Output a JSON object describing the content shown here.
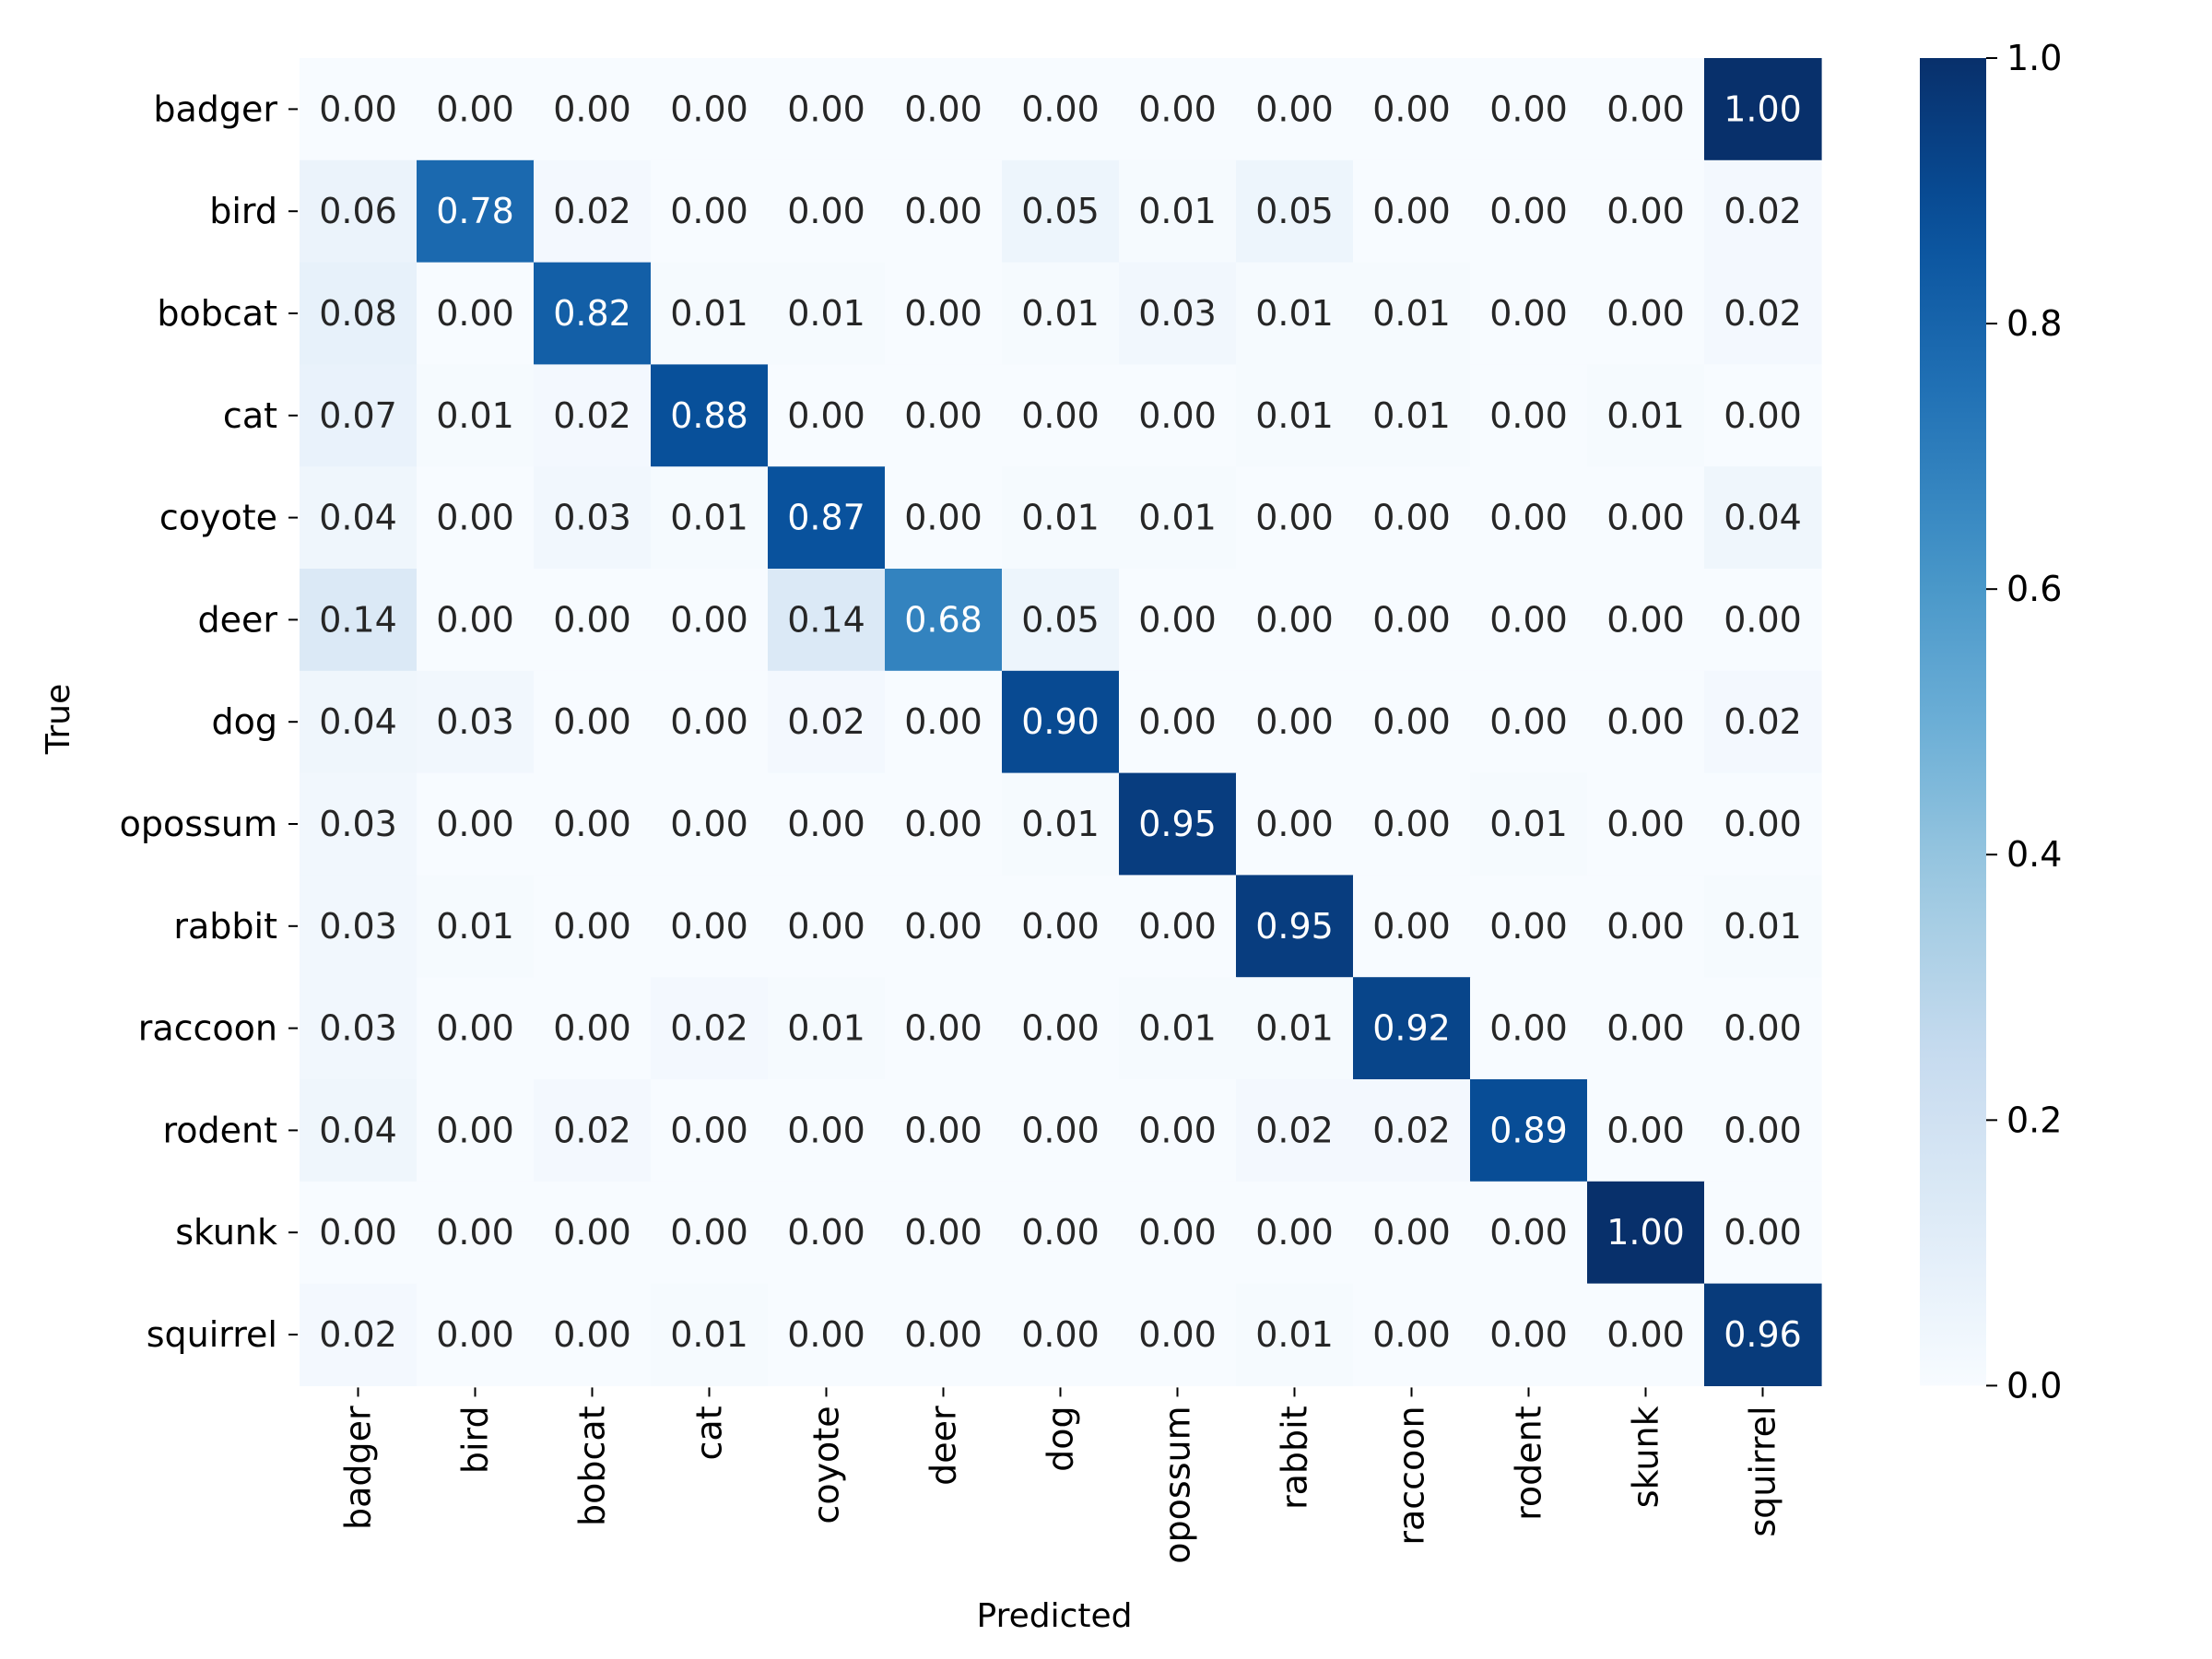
{
  "chart_data": {
    "type": "heatmap",
    "title": "",
    "xlabel": "Predicted",
    "ylabel": "True",
    "categories": [
      "badger",
      "bird",
      "bobcat",
      "cat",
      "coyote",
      "deer",
      "dog",
      "opossum",
      "rabbit",
      "raccoon",
      "rodent",
      "skunk",
      "squirrel"
    ],
    "x_categories": [
      "badger",
      "bird",
      "bobcat",
      "cat",
      "coyote",
      "deer",
      "dog",
      "opossum",
      "rabbit",
      "raccoon",
      "rodent",
      "skunk",
      "squirrel"
    ],
    "y_categories": [
      "badger",
      "bird",
      "bobcat",
      "cat",
      "coyote",
      "deer",
      "dog",
      "opossum",
      "rabbit",
      "raccoon",
      "rodent",
      "skunk",
      "squirrel"
    ],
    "matrix": [
      [
        0.0,
        0.0,
        0.0,
        0.0,
        0.0,
        0.0,
        0.0,
        0.0,
        0.0,
        0.0,
        0.0,
        0.0,
        1.0
      ],
      [
        0.06,
        0.78,
        0.02,
        0.0,
        0.0,
        0.0,
        0.05,
        0.01,
        0.05,
        0.0,
        0.0,
        0.0,
        0.02
      ],
      [
        0.08,
        0.0,
        0.82,
        0.01,
        0.01,
        0.0,
        0.01,
        0.03,
        0.01,
        0.01,
        0.0,
        0.0,
        0.02
      ],
      [
        0.07,
        0.01,
        0.02,
        0.88,
        0.0,
        0.0,
        0.0,
        0.0,
        0.01,
        0.01,
        0.0,
        0.01,
        0.0
      ],
      [
        0.04,
        0.0,
        0.03,
        0.01,
        0.87,
        0.0,
        0.01,
        0.01,
        0.0,
        0.0,
        0.0,
        0.0,
        0.04
      ],
      [
        0.14,
        0.0,
        0.0,
        0.0,
        0.14,
        0.68,
        0.05,
        0.0,
        0.0,
        0.0,
        0.0,
        0.0,
        0.0
      ],
      [
        0.04,
        0.03,
        0.0,
        0.0,
        0.02,
        0.0,
        0.9,
        0.0,
        0.0,
        0.0,
        0.0,
        0.0,
        0.02
      ],
      [
        0.03,
        0.0,
        0.0,
        0.0,
        0.0,
        0.0,
        0.01,
        0.95,
        0.0,
        0.0,
        0.01,
        0.0,
        0.0
      ],
      [
        0.03,
        0.01,
        0.0,
        0.0,
        0.0,
        0.0,
        0.0,
        0.0,
        0.95,
        0.0,
        0.0,
        0.0,
        0.01
      ],
      [
        0.03,
        0.0,
        0.0,
        0.02,
        0.01,
        0.0,
        0.0,
        0.01,
        0.01,
        0.92,
        0.0,
        0.0,
        0.0
      ],
      [
        0.04,
        0.0,
        0.02,
        0.0,
        0.0,
        0.0,
        0.0,
        0.0,
        0.02,
        0.02,
        0.89,
        0.0,
        0.0
      ],
      [
        0.0,
        0.0,
        0.0,
        0.0,
        0.0,
        0.0,
        0.0,
        0.0,
        0.0,
        0.0,
        0.0,
        1.0,
        0.0
      ],
      [
        0.02,
        0.0,
        0.0,
        0.01,
        0.0,
        0.0,
        0.0,
        0.0,
        0.01,
        0.0,
        0.0,
        0.0,
        0.96
      ]
    ],
    "value_format": "2 decimals",
    "colorbar": {
      "min": 0.0,
      "max": 1.0,
      "ticks": [
        "0.0",
        "0.2",
        "0.4",
        "0.6",
        "0.8",
        "1.0"
      ],
      "colormap": "Blues"
    },
    "grid": false,
    "legend": "colorbar-right"
  },
  "colors": {
    "text_dark": "#262626",
    "text_light": "#ffffff",
    "axis": "#000000",
    "cmap_low": "#f7fbff",
    "cmap_high": "#08306b"
  }
}
